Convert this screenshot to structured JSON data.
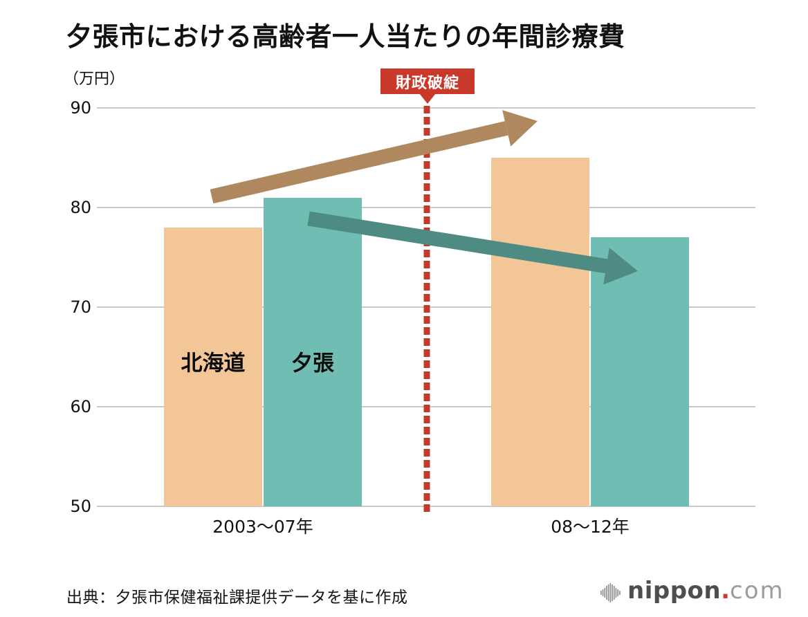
{
  "title": "夕張市における高齢者一人当たりの年間診療費",
  "unit_label": "（万円）",
  "annotation": {
    "badge_label": "財政破綻"
  },
  "source": "出典：夕張市保健福祉課提供データを基に作成",
  "logo": {
    "brand": "nippon",
    "dot": ".",
    "tld": "com",
    "icon": "sound-wave-bars-icon"
  },
  "colors": {
    "hokkaido_bar": "#f3c697",
    "yubari_bar": "#70bdb3",
    "hokkaido_trend_arrow": "#b0885f",
    "yubari_trend_arrow": "#4e8c83",
    "badge_red": "#c9392b",
    "dashed_line_red": "#c0392b",
    "gridline_gray": "#c9c9c9",
    "text_black": "#111111",
    "logo_dark_gray": "#4e4e4e",
    "logo_light_gray": "#9c9c9c",
    "logo_dot_red": "#d0382c"
  },
  "chart_data": {
    "type": "bar",
    "title": "夕張市における高齢者一人当たりの年間診療費",
    "categories": [
      "2003〜07年",
      "08〜12年"
    ],
    "series": [
      {
        "key": "hokkaido",
        "name": "北海道",
        "values": [
          78,
          85
        ],
        "trend": "increasing"
      },
      {
        "key": "yubari",
        "name": "夕張",
        "values": [
          81,
          77
        ],
        "trend": "decreasing"
      }
    ],
    "ylabel": "（万円）",
    "ylim": [
      50,
      90
    ],
    "yticks": [
      90,
      80,
      70,
      60,
      50
    ],
    "grid": true,
    "legend_position": "labels-on-first-group-bars",
    "annotations": [
      {
        "type": "vertical-dashed-line",
        "label": "財政破綻",
        "position": "between-categories"
      },
      {
        "type": "trend-arrow",
        "series": "北海道",
        "direction": "up"
      },
      {
        "type": "trend-arrow",
        "series": "夕張",
        "direction": "down"
      }
    ]
  }
}
